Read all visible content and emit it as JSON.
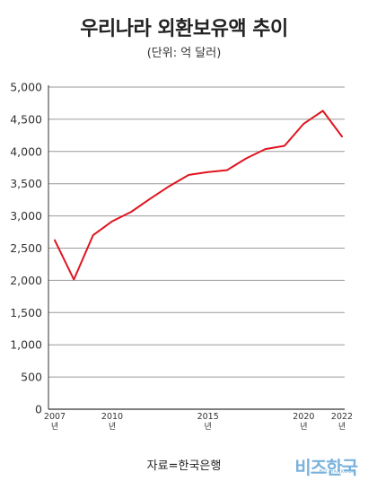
{
  "title": "우리나라 외환보유액 추이",
  "subtitle": "(단위: 억 달러)",
  "source": "자료=한국은행",
  "logo": {
    "text": "비즈한국",
    "sub": "BIZ.HANKOOK"
  },
  "colors": {
    "line": "#e0141e",
    "grid": "#9a9a9a",
    "axis": "#333333"
  },
  "chart_data": {
    "type": "line",
    "x": [
      2007,
      2008,
      2009,
      2010,
      2011,
      2012,
      2013,
      2014,
      2015,
      2016,
      2017,
      2018,
      2019,
      2020,
      2021,
      2022
    ],
    "series": [
      {
        "values": [
          2622,
          2012,
          2700,
          2916,
          3064,
          3270,
          3465,
          3636,
          3680,
          3711,
          3893,
          4037,
          4088,
          4431,
          4631,
          4232
        ]
      }
    ],
    "ylim": [
      0,
      5000
    ],
    "yticks": [
      0,
      500,
      1000,
      1500,
      2000,
      2500,
      3000,
      3500,
      4000,
      4500,
      5000
    ],
    "ytick_labels": [
      "0",
      "500",
      "1,000",
      "1,500",
      "2,000",
      "2,500",
      "3,000",
      "3,500",
      "4,000",
      "4,500",
      "5,000"
    ],
    "xticks": [
      {
        "year": 2007,
        "label": "2007",
        "sub": "년"
      },
      {
        "year": 2010,
        "label": "2010",
        "sub": "년"
      },
      {
        "year": 2015,
        "label": "2015",
        "sub": "년"
      },
      {
        "year": 2020,
        "label": "2020",
        "sub": "년"
      },
      {
        "year": 2022,
        "label": "2022",
        "sub": "년"
      }
    ],
    "grid": true
  }
}
